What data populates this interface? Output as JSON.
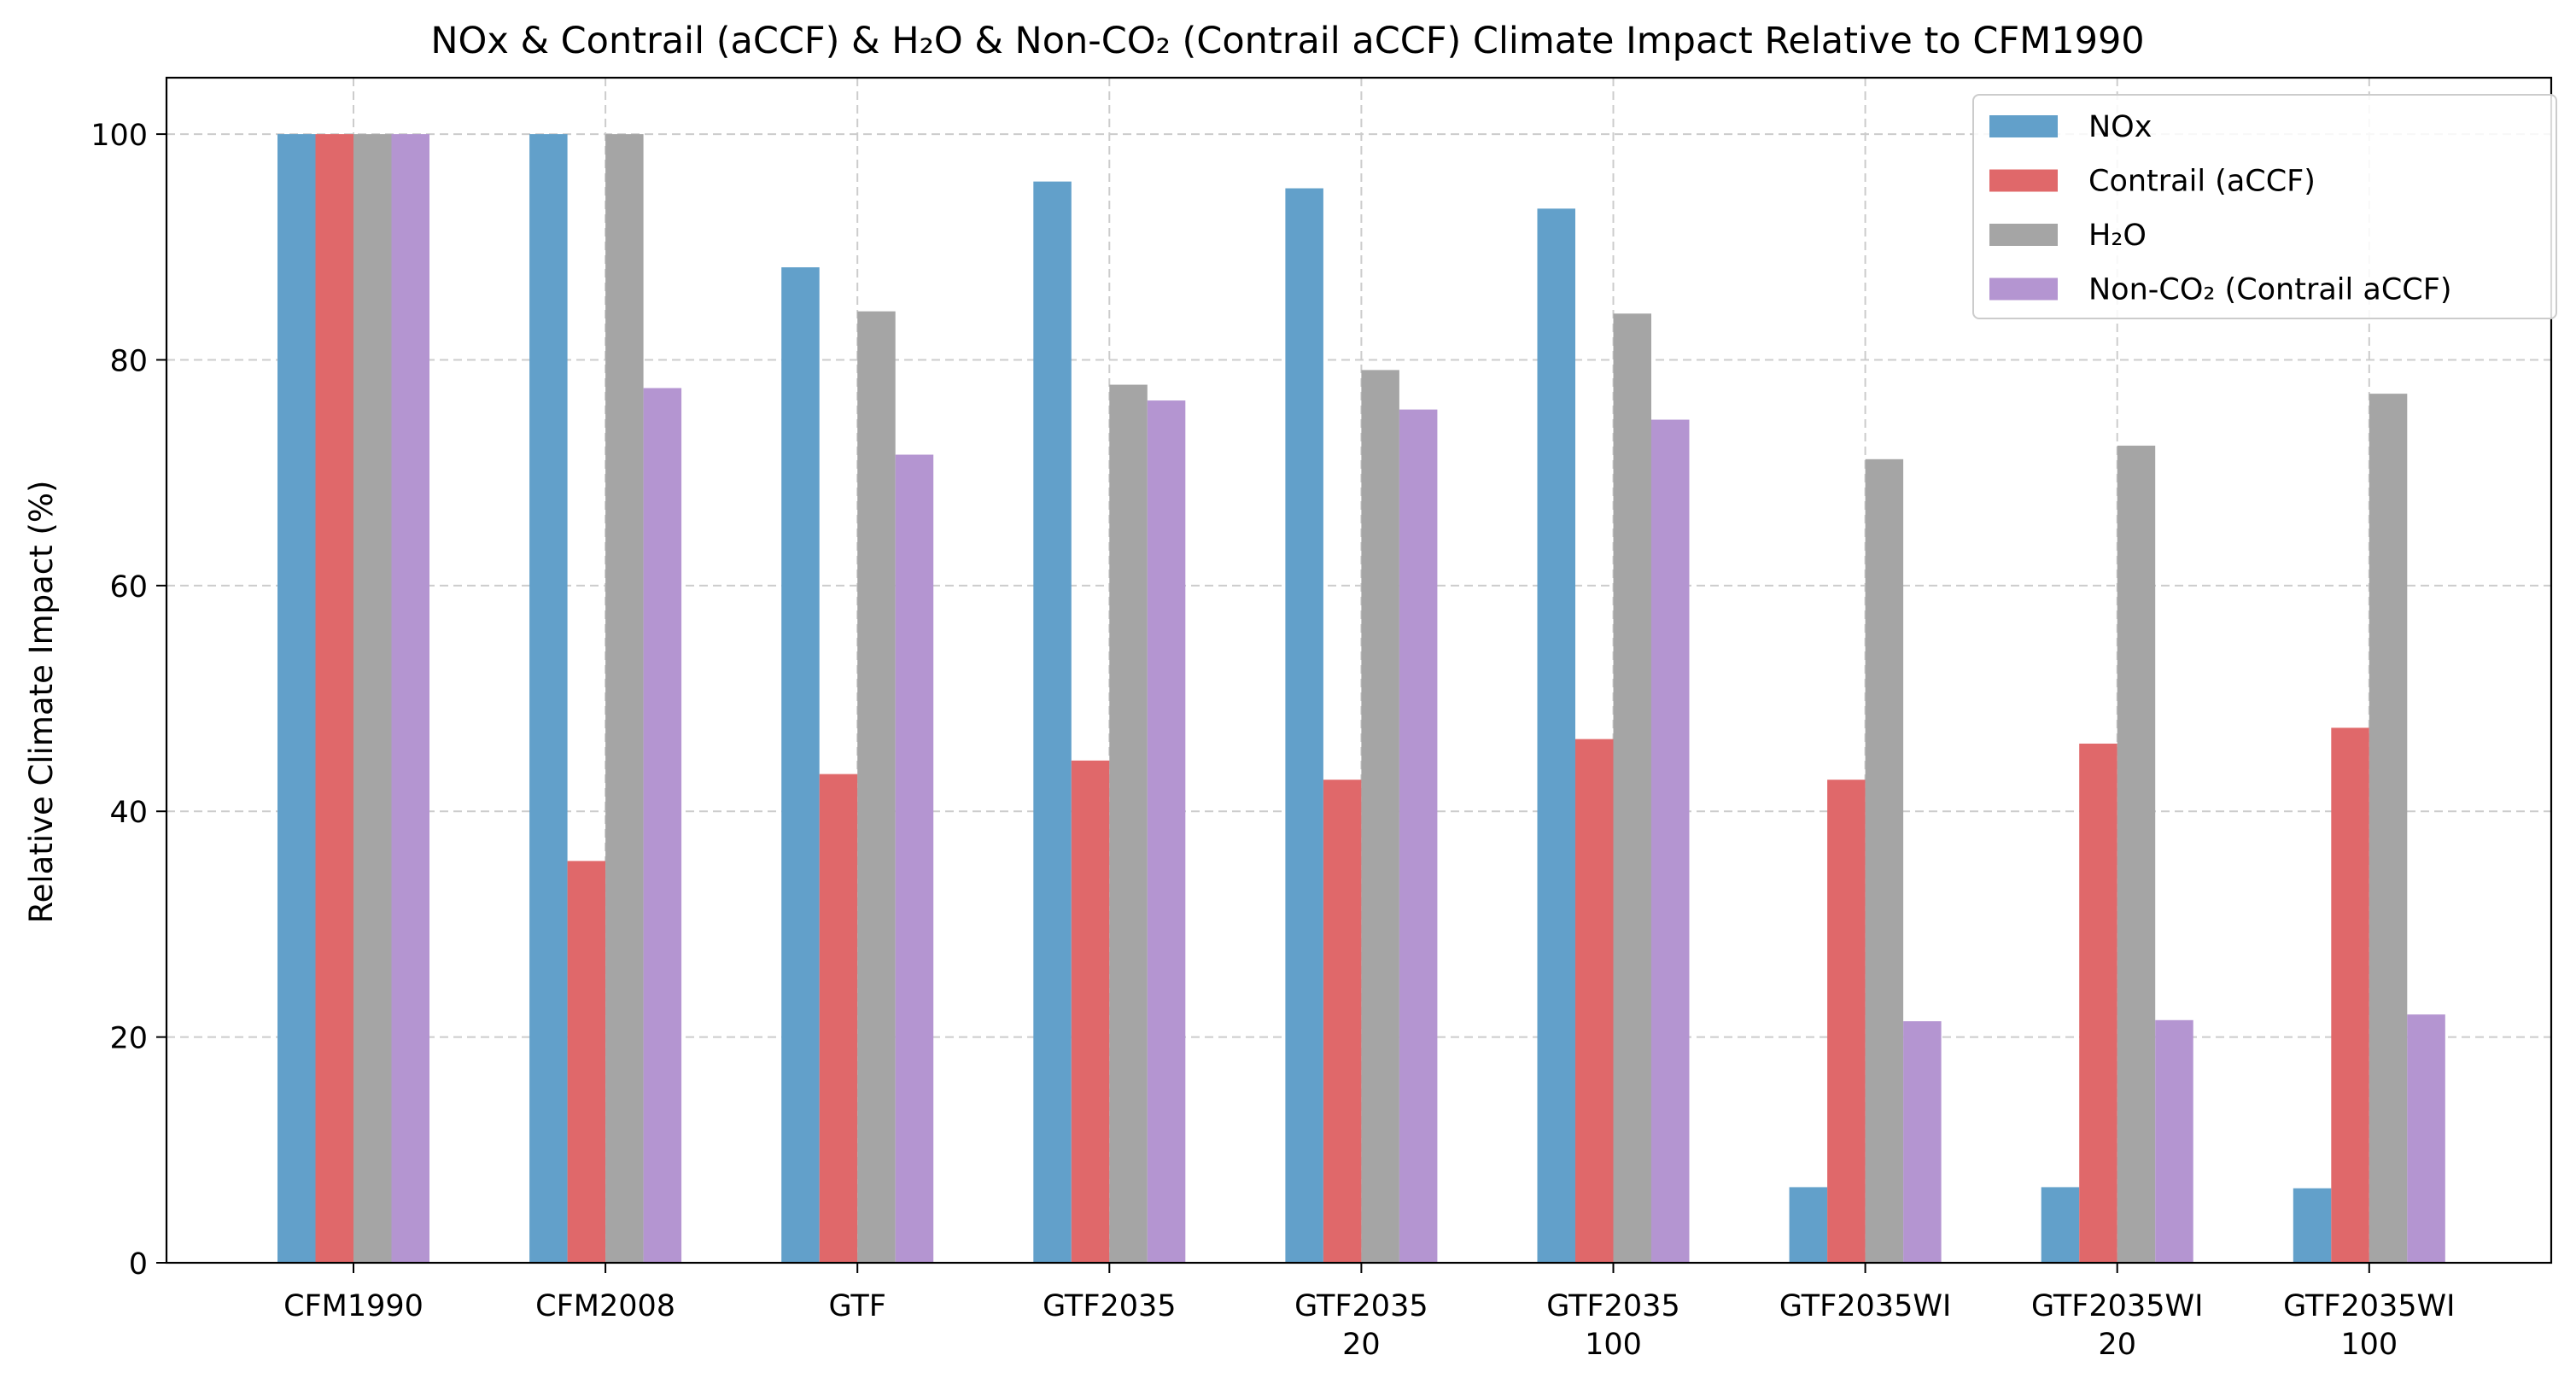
{
  "chart_data": {
    "type": "bar",
    "title": "NOx & Contrail (aCCF) & H₂O & Non-CO₂ (Contrail aCCF) Climate Impact Relative to CFM1990",
    "xlabel": "",
    "ylabel": "Relative Climate Impact (%)",
    "ylim": [
      0,
      105
    ],
    "yticks": [
      0,
      20,
      40,
      60,
      80,
      100
    ],
    "grid": true,
    "legend_position": "top-right",
    "categories": [
      [
        "CFM1990"
      ],
      [
        "CFM2008"
      ],
      [
        "GTF"
      ],
      [
        "GTF2035"
      ],
      [
        "GTF2035",
        "20"
      ],
      [
        "GTF2035",
        "100"
      ],
      [
        "GTF2035WI"
      ],
      [
        "GTF2035WI",
        "20"
      ],
      [
        "GTF2035WI",
        "100"
      ]
    ],
    "series": [
      {
        "name": "NOx",
        "color": "#62a0ca",
        "values": [
          100,
          100,
          88.2,
          95.8,
          95.2,
          93.4,
          6.7,
          6.7,
          6.6
        ]
      },
      {
        "name": "Contrail (aCCF)",
        "color": "#e0686a",
        "values": [
          100,
          35.6,
          43.3,
          44.5,
          42.8,
          46.4,
          42.8,
          46.0,
          47.4
        ]
      },
      {
        "name": "H₂O",
        "color": "#a5a5a5",
        "values": [
          100,
          100,
          84.3,
          77.8,
          79.1,
          84.1,
          71.2,
          72.4,
          77.0
        ]
      },
      {
        "name": "Non-CO₂ (Contrail aCCF)",
        "color": "#b495d1",
        "values": [
          100,
          77.5,
          71.6,
          76.4,
          75.6,
          74.7,
          21.4,
          21.5,
          22.0
        ]
      }
    ]
  }
}
